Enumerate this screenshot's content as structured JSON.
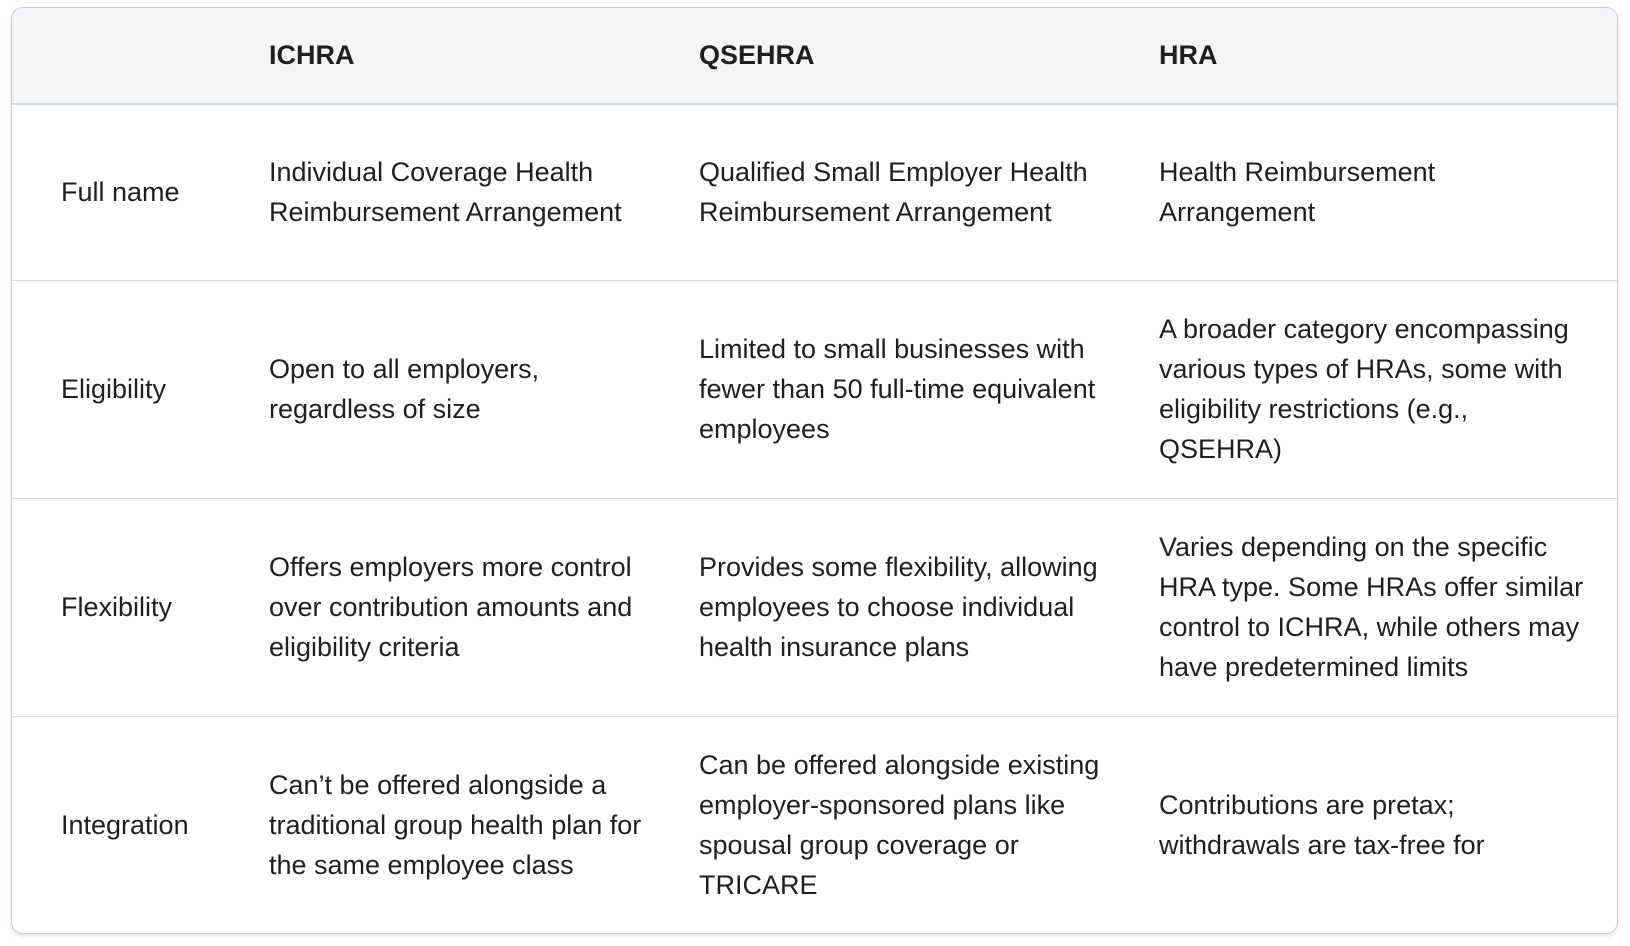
{
  "table": {
    "headers": [
      "",
      "ICHRA",
      "QSEHRA",
      "HRA"
    ],
    "rows": [
      {
        "label": "Full name",
        "cells": [
          "Individual Coverage Health Reimbursement Arrangement",
          "Qualified Small Employer Health Reimbursement Arrangement",
          "Health Reimbursement Arrangement"
        ]
      },
      {
        "label": "Eligibility",
        "cells": [
          "Open to all employers, regardless of size",
          "Limited to small businesses with fewer than 50 full-time equivalent employees",
          "A broader category encompassing various types of HRAs, some with eligibility restrictions (e.g., QSEHRA)"
        ]
      },
      {
        "label": "Flexibility",
        "cells": [
          "Offers employers more control over contribution amounts and eligibility criteria",
          "Provides some flexibility, allowing employees to choose individual health insurance plans",
          "Varies depending on the specific HRA type. Some HRAs offer similar control to ICHRA, while others may have predetermined limits"
        ]
      },
      {
        "label": "Integration",
        "cells": [
          "Can’t be offered alongside a traditional group health plan for the same employee class",
          "Can be offered alongside existing employer-sponsored plans like spousal group coverage or TRICARE",
          "Contributions are pretax; withdrawals are tax-free for"
        ]
      }
    ]
  }
}
